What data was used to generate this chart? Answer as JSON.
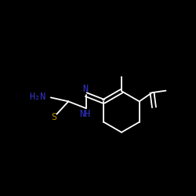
{
  "background": "#000000",
  "bond_color": "#ffffff",
  "label_color_blue": "#3333cc",
  "label_color_yellow": "#b8860b",
  "figsize": [
    2.5,
    2.5
  ],
  "dpi": 100,
  "xlim": [
    0,
    10
  ],
  "ylim": [
    0,
    10
  ]
}
